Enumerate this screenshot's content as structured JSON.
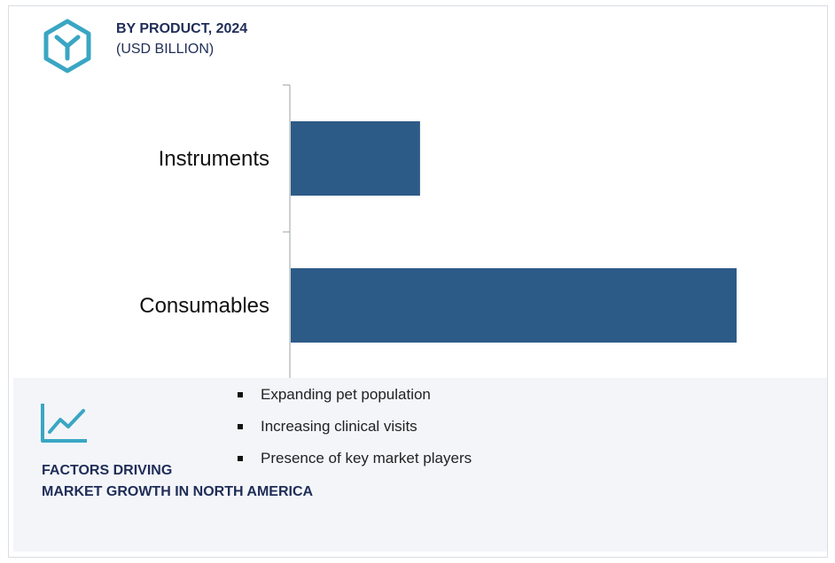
{
  "header": {
    "title": "BY PRODUCT, 2024",
    "subtitle": "(USD BILLION)",
    "logo_icon": "hexagon-y-icon"
  },
  "chart_data": {
    "type": "bar",
    "orientation": "horizontal",
    "categories": [
      "Instruments",
      "Consumables"
    ],
    "values": [
      0.29,
      1.0
    ],
    "value_scale": "relative",
    "title": "BY PRODUCT, 2024",
    "subtitle": "(USD BILLION)",
    "grid": false,
    "bar_color": "#2d5b87"
  },
  "factors": {
    "icon": "trend-line-icon",
    "title_line1": "FACTORS DRIVING",
    "title_line2": "MARKET GROWTH IN NORTH AMERICA",
    "items": [
      "Expanding pet population",
      "Increasing clinical visits",
      "Presence of key market players"
    ]
  },
  "colors": {
    "accent": "#3aa6c3",
    "title": "#1f2d57",
    "bar": "#2d5b87",
    "panel": "#f3f5f9"
  }
}
